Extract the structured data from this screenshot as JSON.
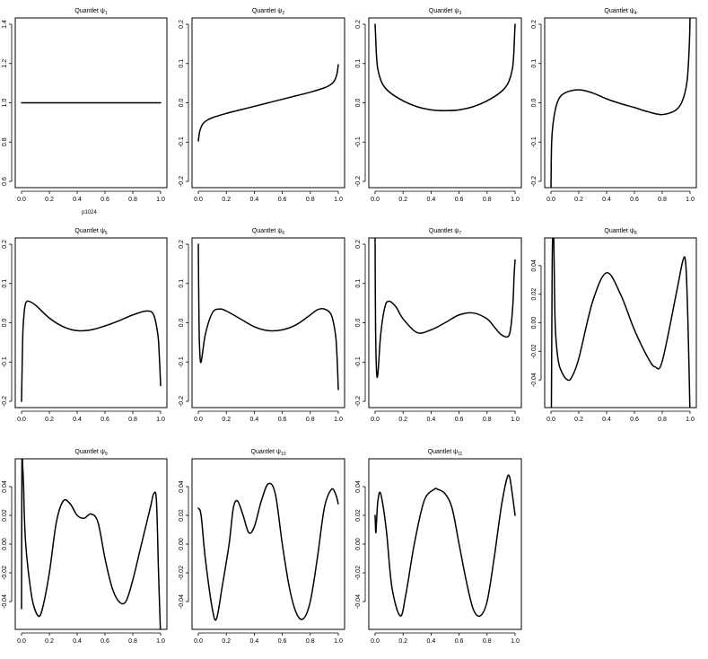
{
  "title_prefix": "Quantlet",
  "title_symbol": "ψ",
  "chart_data": [
    {
      "type": "line",
      "title": "Quantlet ψ1",
      "title_index": "1",
      "xlabel": "",
      "ylabel": "",
      "xlim": [
        0,
        1
      ],
      "ylim": [
        0.6,
        1.4
      ],
      "x_ticks": [
        "0.0",
        "0.2",
        "0.4",
        "0.6",
        "0.8",
        "1.0"
      ],
      "y_ticks": [
        "0.6",
        "0.8",
        "1.0",
        "1.2",
        "1.4"
      ],
      "extra_label": "p1024",
      "series": [
        {
          "x": [
            0,
            0.2,
            0.4,
            0.6,
            0.8,
            1
          ],
          "y": [
            1,
            1,
            1,
            1,
            1,
            1
          ]
        }
      ]
    },
    {
      "type": "line",
      "title": "Quantlet ψ2",
      "title_index": "2",
      "xlabel": "",
      "ylabel": "",
      "xlim": [
        0,
        1
      ],
      "ylim": [
        -0.2,
        0.2
      ],
      "x_ticks": [
        "0.0",
        "0.2",
        "0.4",
        "0.6",
        "0.8",
        "1.0"
      ],
      "y_ticks": [
        "-0.2",
        "-0.1",
        "0.0",
        "0.1",
        "0.2"
      ],
      "series": [
        {
          "x": [
            0,
            0.01,
            0.03,
            0.06,
            0.1,
            0.2,
            0.3,
            0.4,
            0.5,
            0.6,
            0.7,
            0.8,
            0.9,
            0.94,
            0.97,
            0.99,
            1
          ],
          "y": [
            -0.097,
            -0.073,
            -0.055,
            -0.045,
            -0.038,
            -0.027,
            -0.018,
            -0.009,
            0,
            0.009,
            0.018,
            0.027,
            0.038,
            0.045,
            0.055,
            0.073,
            0.097
          ]
        }
      ]
    },
    {
      "type": "line",
      "title": "Quantlet ψ3",
      "title_index": "3",
      "xlabel": "",
      "ylabel": "",
      "xlim": [
        0,
        1
      ],
      "ylim": [
        -0.2,
        0.2
      ],
      "x_ticks": [
        "0.0",
        "0.2",
        "0.4",
        "0.6",
        "0.8",
        "1.0"
      ],
      "y_ticks": [
        "-0.2",
        "-0.1",
        "0.0",
        "0.1",
        "0.2"
      ],
      "series": [
        {
          "x": [
            0,
            0.005,
            0.01,
            0.02,
            0.05,
            0.1,
            0.2,
            0.3,
            0.4,
            0.5,
            0.6,
            0.7,
            0.8,
            0.9,
            0.95,
            0.98,
            0.99,
            0.995,
            1
          ],
          "y": [
            0.2,
            0.16,
            0.12,
            0.085,
            0.05,
            0.028,
            0.005,
            -0.01,
            -0.018,
            -0.02,
            -0.018,
            -0.01,
            0.005,
            0.028,
            0.05,
            0.085,
            0.12,
            0.16,
            0.2
          ]
        }
      ]
    },
    {
      "type": "line",
      "title": "Quantlet ψ4",
      "title_index": "4",
      "xlabel": "",
      "ylabel": "",
      "xlim": [
        0,
        1
      ],
      "ylim": [
        -0.2,
        0.2
      ],
      "x_ticks": [
        "0.0",
        "0.2",
        "0.4",
        "0.6",
        "0.8",
        "1.0"
      ],
      "y_ticks": [
        "-0.2",
        "-0.1",
        "0.0",
        "0.1",
        "0.2"
      ],
      "series": [
        {
          "x": [
            0,
            0.005,
            0.02,
            0.05,
            0.1,
            0.2,
            0.3,
            0.4,
            0.5,
            0.6,
            0.7,
            0.8,
            0.9,
            0.95,
            0.98,
            0.995,
            1
          ],
          "y": [
            -0.22,
            -0.1,
            -0.04,
            0.005,
            0.025,
            0.033,
            0.025,
            0.01,
            -0.002,
            -0.012,
            -0.023,
            -0.03,
            -0.018,
            0.01,
            0.06,
            0.15,
            0.22
          ]
        }
      ]
    },
    {
      "type": "line",
      "title": "Quantlet ψ5",
      "title_index": "5",
      "xlabel": "",
      "ylabel": "",
      "xlim": [
        0,
        1
      ],
      "ylim": [
        -0.2,
        0.2
      ],
      "x_ticks": [
        "0.0",
        "0.2",
        "0.4",
        "0.6",
        "0.8",
        "1.0"
      ],
      "y_ticks": [
        "-0.2",
        "-0.1",
        "0.0",
        "0.1",
        "0.2"
      ],
      "series": [
        {
          "x": [
            0,
            0.005,
            0.01,
            0.02,
            0.03,
            0.05,
            0.1,
            0.2,
            0.3,
            0.4,
            0.5,
            0.6,
            0.7,
            0.8,
            0.9,
            0.95,
            0.98,
            0.99,
            1
          ],
          "y": [
            -0.2,
            -0.1,
            -0.02,
            0.03,
            0.05,
            0.055,
            0.045,
            0.012,
            -0.01,
            -0.02,
            -0.018,
            -0.008,
            0.005,
            0.02,
            0.03,
            0.02,
            -0.03,
            -0.08,
            -0.16
          ]
        }
      ]
    },
    {
      "type": "line",
      "title": "Quantlet ψ6",
      "title_index": "6",
      "xlabel": "",
      "ylabel": "",
      "xlim": [
        0,
        1
      ],
      "ylim": [
        -0.2,
        0.2
      ],
      "x_ticks": [
        "0.0",
        "0.2",
        "0.4",
        "0.6",
        "0.8",
        "1.0"
      ],
      "y_ticks": [
        "-0.2",
        "-0.1",
        "0.0",
        "0.1",
        "0.2"
      ],
      "series": [
        {
          "x": [
            0,
            0.005,
            0.01,
            0.02,
            0.05,
            0.1,
            0.15,
            0.2,
            0.3,
            0.4,
            0.5,
            0.6,
            0.7,
            0.8,
            0.85,
            0.9,
            0.95,
            0.98,
            0.99,
            0.995,
            1
          ],
          "y": [
            0.2,
            0.0,
            -0.07,
            -0.1,
            -0.03,
            0.025,
            0.035,
            0.03,
            0.01,
            -0.01,
            -0.02,
            -0.018,
            -0.005,
            0.02,
            0.033,
            0.035,
            0.02,
            -0.03,
            -0.08,
            -0.12,
            -0.17
          ]
        }
      ]
    },
    {
      "type": "line",
      "title": "Quantlet ψ7",
      "title_index": "7",
      "xlabel": "",
      "ylabel": "",
      "xlim": [
        0,
        1
      ],
      "ylim": [
        -0.2,
        0.2
      ],
      "x_ticks": [
        "0.0",
        "0.2",
        "0.4",
        "0.6",
        "0.8",
        "1.0"
      ],
      "y_ticks": [
        "-0.2",
        "-0.1",
        "0.0",
        "0.1",
        "0.2"
      ],
      "series": [
        {
          "x": [
            0,
            0.003,
            0.01,
            0.02,
            0.04,
            0.07,
            0.1,
            0.15,
            0.2,
            0.3,
            0.4,
            0.5,
            0.6,
            0.7,
            0.8,
            0.85,
            0.9,
            0.95,
            0.97,
            0.985,
            0.993,
            1
          ],
          "y": [
            0.22,
            0.0,
            -0.12,
            -0.13,
            -0.03,
            0.04,
            0.055,
            0.04,
            0.01,
            -0.025,
            -0.018,
            0.0,
            0.02,
            0.025,
            0.01,
            -0.01,
            -0.03,
            -0.035,
            -0.01,
            0.05,
            0.12,
            0.16
          ]
        }
      ]
    },
    {
      "type": "line",
      "title": "Quantlet ψ8",
      "title_index": "8",
      "xlabel": "",
      "ylabel": "",
      "xlim": [
        0,
        1
      ],
      "ylim": [
        -0.055,
        0.055
      ],
      "x_ticks": [
        "0.0",
        "0.2",
        "0.4",
        "0.6",
        "0.8",
        "1.0"
      ],
      "y_ticks": [
        "-0.04",
        "-0.02",
        "0.00",
        "0.02",
        "0.04"
      ],
      "series": [
        {
          "x": [
            0,
            0.003,
            0.008,
            0.012,
            0.02,
            0.03,
            0.05,
            0.08,
            0.12,
            0.15,
            0.2,
            0.3,
            0.4,
            0.5,
            0.6,
            0.7,
            0.75,
            0.8,
            0.9,
            0.95,
            0.97,
            0.985,
            1
          ],
          "y": [
            -0.06,
            -0.06,
            0.03,
            0.06,
            0.06,
            0.0,
            -0.025,
            -0.035,
            -0.04,
            -0.038,
            -0.025,
            0.015,
            0.035,
            0.02,
            -0.005,
            -0.025,
            -0.031,
            -0.027,
            0.02,
            0.044,
            0.04,
            0.0,
            -0.065
          ]
        }
      ]
    },
    {
      "type": "line",
      "title": "Quantlet ψ9",
      "title_index": "9",
      "xlabel": "",
      "ylabel": "",
      "xlim": [
        0,
        1
      ],
      "ylim": [
        -0.055,
        0.055
      ],
      "x_ticks": [
        "0.0",
        "0.2",
        "0.4",
        "0.6",
        "0.8",
        "1.0"
      ],
      "y_ticks": [
        "-0.04",
        "-0.02",
        "0.00",
        "0.02",
        "0.04"
      ],
      "series": [
        {
          "x": [
            0,
            0.003,
            0.008,
            0.015,
            0.02,
            0.03,
            0.05,
            0.08,
            0.12,
            0.15,
            0.2,
            0.25,
            0.3,
            0.35,
            0.4,
            0.45,
            0.5,
            0.55,
            0.6,
            0.65,
            0.7,
            0.75,
            0.8,
            0.85,
            0.9,
            0.93,
            0.95,
            0.97,
            0.985,
            1
          ],
          "y": [
            -0.045,
            0.06,
            0.055,
            0.04,
            0.02,
            0.0,
            -0.02,
            -0.04,
            -0.05,
            -0.045,
            -0.02,
            0.015,
            0.03,
            0.028,
            0.02,
            0.018,
            0.021,
            0.015,
            -0.01,
            -0.03,
            -0.04,
            -0.04,
            -0.025,
            -0.005,
            0.015,
            0.027,
            0.035,
            0.03,
            -0.02,
            -0.065
          ]
        }
      ]
    },
    {
      "type": "line",
      "title": "Quantlet ψ10",
      "title_index": "10",
      "xlabel": "",
      "ylabel": "",
      "xlim": [
        0,
        1
      ],
      "ylim": [
        -0.055,
        0.055
      ],
      "x_ticks": [
        "0.0",
        "0.2",
        "0.4",
        "0.6",
        "0.8",
        "1.0"
      ],
      "y_ticks": [
        "-0.04",
        "-0.02",
        "0.00",
        "0.02",
        "0.04"
      ],
      "series": [
        {
          "x": [
            0,
            0.02,
            0.05,
            0.1,
            0.13,
            0.17,
            0.22,
            0.25,
            0.28,
            0.32,
            0.36,
            0.4,
            0.45,
            0.5,
            0.55,
            0.6,
            0.65,
            0.7,
            0.75,
            0.8,
            0.85,
            0.9,
            0.95,
            0.98,
            1
          ],
          "y": [
            0.025,
            0.02,
            -0.01,
            -0.045,
            -0.052,
            -0.03,
            0.0,
            0.025,
            0.03,
            0.02,
            0.008,
            0.012,
            0.03,
            0.042,
            0.035,
            0.0,
            -0.03,
            -0.048,
            -0.052,
            -0.04,
            -0.01,
            0.025,
            0.038,
            0.035,
            0.028
          ]
        }
      ]
    },
    {
      "type": "line",
      "title": "Quantlet ψ11",
      "title_index": "11",
      "xlabel": "",
      "ylabel": "",
      "xlim": [
        0,
        1
      ],
      "ylim": [
        -0.055,
        0.055
      ],
      "x_ticks": [
        "0.0",
        "0.2",
        "0.4",
        "0.6",
        "0.8",
        "1.0"
      ],
      "y_ticks": [
        "-0.04",
        "-0.02",
        "0.00",
        "0.02",
        "0.04"
      ],
      "series": [
        {
          "x": [
            0,
            0.005,
            0.01,
            0.02,
            0.04,
            0.08,
            0.12,
            0.18,
            0.22,
            0.28,
            0.35,
            0.42,
            0.45,
            0.5,
            0.55,
            0.6,
            0.65,
            0.7,
            0.75,
            0.8,
            0.85,
            0.9,
            0.94,
            0.96,
            0.98,
            1
          ],
          "y": [
            0.02,
            0.008,
            0.015,
            0.03,
            0.035,
            0.01,
            -0.03,
            -0.05,
            -0.035,
            0.0,
            0.03,
            0.038,
            0.038,
            0.035,
            0.025,
            0.0,
            -0.025,
            -0.045,
            -0.05,
            -0.04,
            -0.01,
            0.025,
            0.045,
            0.047,
            0.035,
            0.02
          ]
        }
      ]
    }
  ]
}
